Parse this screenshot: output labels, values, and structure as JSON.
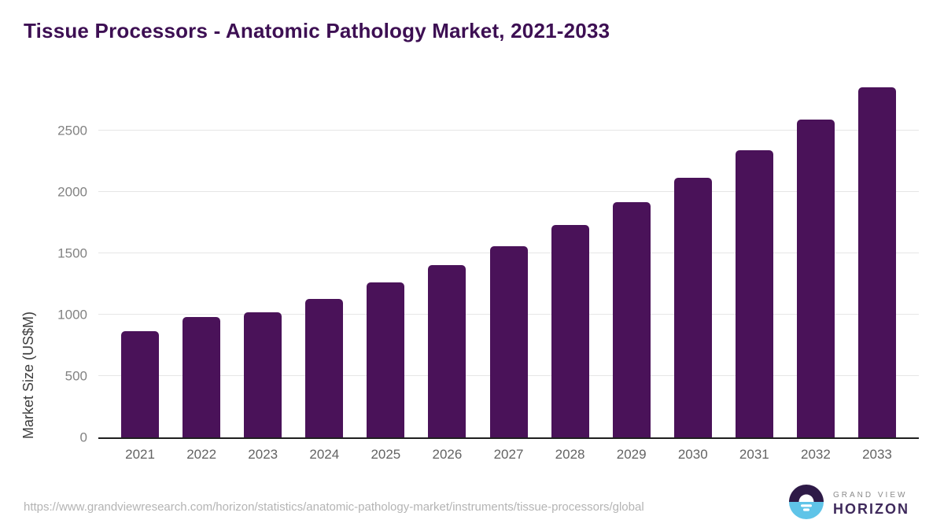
{
  "title": "Tissue Processors - Anatomic Pathology Market, 2021-2033",
  "chart_data": {
    "type": "bar",
    "categories": [
      "2021",
      "2022",
      "2023",
      "2024",
      "2025",
      "2026",
      "2027",
      "2028",
      "2029",
      "2030",
      "2031",
      "2032",
      "2033"
    ],
    "values": [
      865,
      980,
      1020,
      1125,
      1260,
      1400,
      1555,
      1730,
      1915,
      2115,
      2340,
      2585,
      2850
    ],
    "title": "Tissue Processors - Anatomic Pathology Market, 2021-2033",
    "xlabel": "",
    "ylabel": "Market Size (US$M)",
    "ylim": [
      0,
      2920
    ],
    "yticks": [
      0,
      500,
      1000,
      1500,
      2000,
      2500
    ],
    "grid": true,
    "legend": "none",
    "bar_color": "#4a1259"
  },
  "footer": {
    "source_url": "https://www.grandviewresearch.com/horizon/statistics/anatomic-pathology-market/instruments/tissue-processors/global",
    "logo": {
      "top_text": "GRAND VIEW",
      "bottom_text": "HORIZON",
      "icon_purple": "#2e1a47",
      "icon_blue": "#5fc4e8"
    }
  },
  "colors": {
    "title": "#3d0f53",
    "bar": "#4a1259",
    "gridline": "#e6e6e6",
    "axis_line": "#1f1f1f",
    "tick_label": "#828282",
    "x_label": "#636363"
  }
}
